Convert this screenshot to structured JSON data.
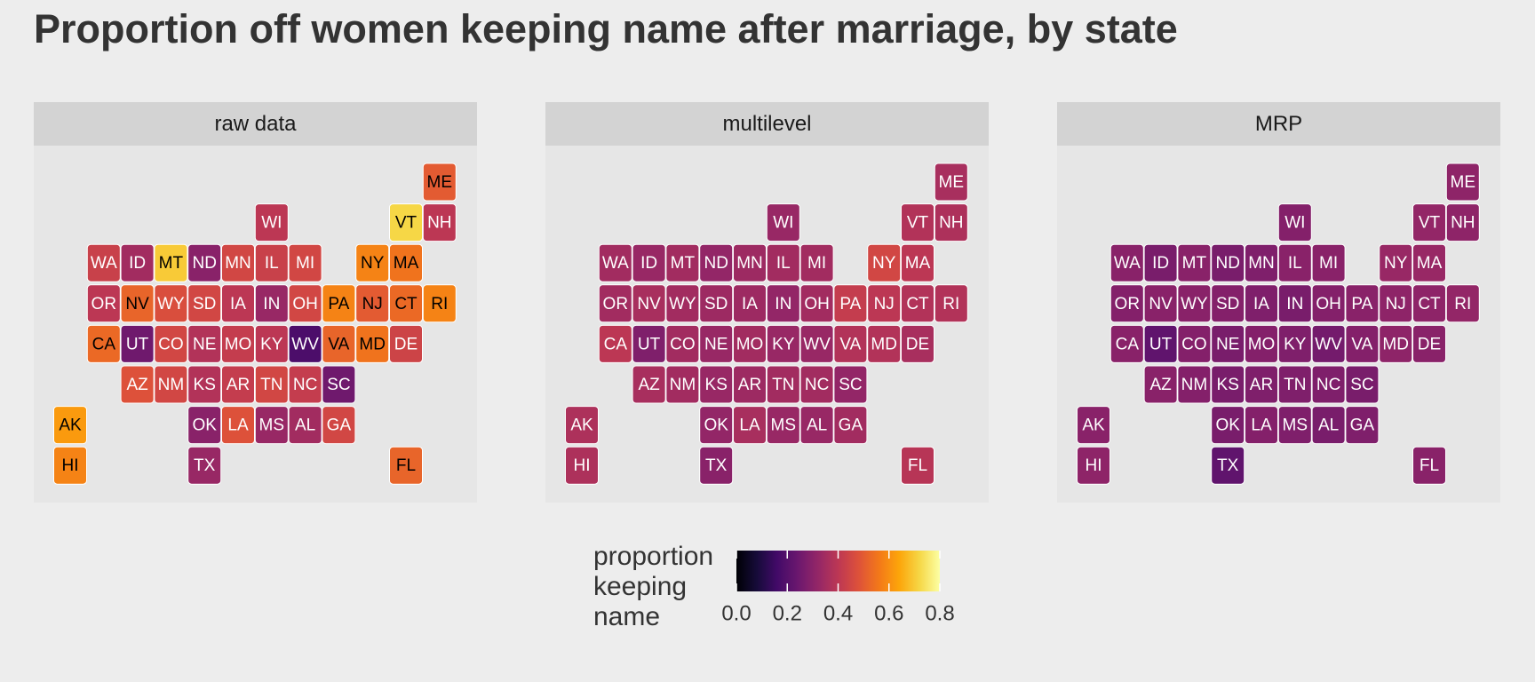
{
  "chart_data": {
    "type": "tile_map",
    "title": "Proportion off women keeping name after marriage, by state",
    "categories": [
      "ME",
      "WI",
      "VT",
      "NH",
      "WA",
      "ID",
      "MT",
      "ND",
      "MN",
      "IL",
      "MI",
      "NY",
      "MA",
      "OR",
      "NV",
      "WY",
      "SD",
      "IA",
      "IN",
      "OH",
      "PA",
      "NJ",
      "CT",
      "RI",
      "CA",
      "UT",
      "CO",
      "NE",
      "MO",
      "KY",
      "WV",
      "VA",
      "MD",
      "DE",
      "AZ",
      "NM",
      "KS",
      "AR",
      "TN",
      "NC",
      "SC",
      "AK",
      "OK",
      "LA",
      "MS",
      "AL",
      "GA",
      "HI",
      "TX",
      "FL"
    ],
    "series": [
      {
        "name": "raw data",
        "values": [
          0.5,
          0.4,
          0.72,
          0.4,
          0.43,
          0.35,
          0.7,
          0.3,
          0.45,
          0.43,
          0.45,
          0.58,
          0.55,
          0.4,
          0.52,
          0.47,
          0.45,
          0.4,
          0.33,
          0.45,
          0.58,
          0.5,
          0.53,
          0.58,
          0.53,
          0.25,
          0.45,
          0.38,
          0.42,
          0.4,
          0.18,
          0.52,
          0.55,
          0.44,
          0.48,
          0.45,
          0.38,
          0.42,
          0.45,
          0.42,
          0.25,
          0.62,
          0.3,
          0.48,
          0.33,
          0.35,
          0.45,
          0.58,
          0.33,
          0.52
        ]
      },
      {
        "name": "multilevel",
        "values": [
          0.36,
          0.33,
          0.38,
          0.37,
          0.35,
          0.33,
          0.35,
          0.32,
          0.34,
          0.35,
          0.35,
          0.45,
          0.4,
          0.35,
          0.36,
          0.35,
          0.34,
          0.34,
          0.32,
          0.35,
          0.42,
          0.4,
          0.38,
          0.38,
          0.4,
          0.28,
          0.35,
          0.33,
          0.35,
          0.33,
          0.33,
          0.38,
          0.38,
          0.36,
          0.36,
          0.35,
          0.33,
          0.34,
          0.35,
          0.35,
          0.32,
          0.37,
          0.32,
          0.36,
          0.33,
          0.33,
          0.35,
          0.37,
          0.3,
          0.39
        ]
      },
      {
        "name": "MRP",
        "values": [
          0.31,
          0.29,
          0.32,
          0.31,
          0.3,
          0.27,
          0.3,
          0.27,
          0.28,
          0.3,
          0.3,
          0.33,
          0.33,
          0.29,
          0.3,
          0.3,
          0.29,
          0.28,
          0.27,
          0.29,
          0.3,
          0.31,
          0.31,
          0.32,
          0.3,
          0.22,
          0.29,
          0.27,
          0.29,
          0.28,
          0.26,
          0.29,
          0.31,
          0.3,
          0.3,
          0.29,
          0.27,
          0.28,
          0.28,
          0.28,
          0.27,
          0.3,
          0.27,
          0.29,
          0.28,
          0.27,
          0.28,
          0.31,
          0.22,
          0.3
        ]
      }
    ],
    "colormap": "inferno",
    "legend_title": "proportion keeping name",
    "colorlim": [
      0,
      0.8
    ],
    "colorticks": [
      {
        "value": 0,
        "label": "0.0"
      },
      0.2,
      0.4,
      0.6,
      {
        "value": 0.8,
        "label": "0.8"
      }
    ]
  }
}
